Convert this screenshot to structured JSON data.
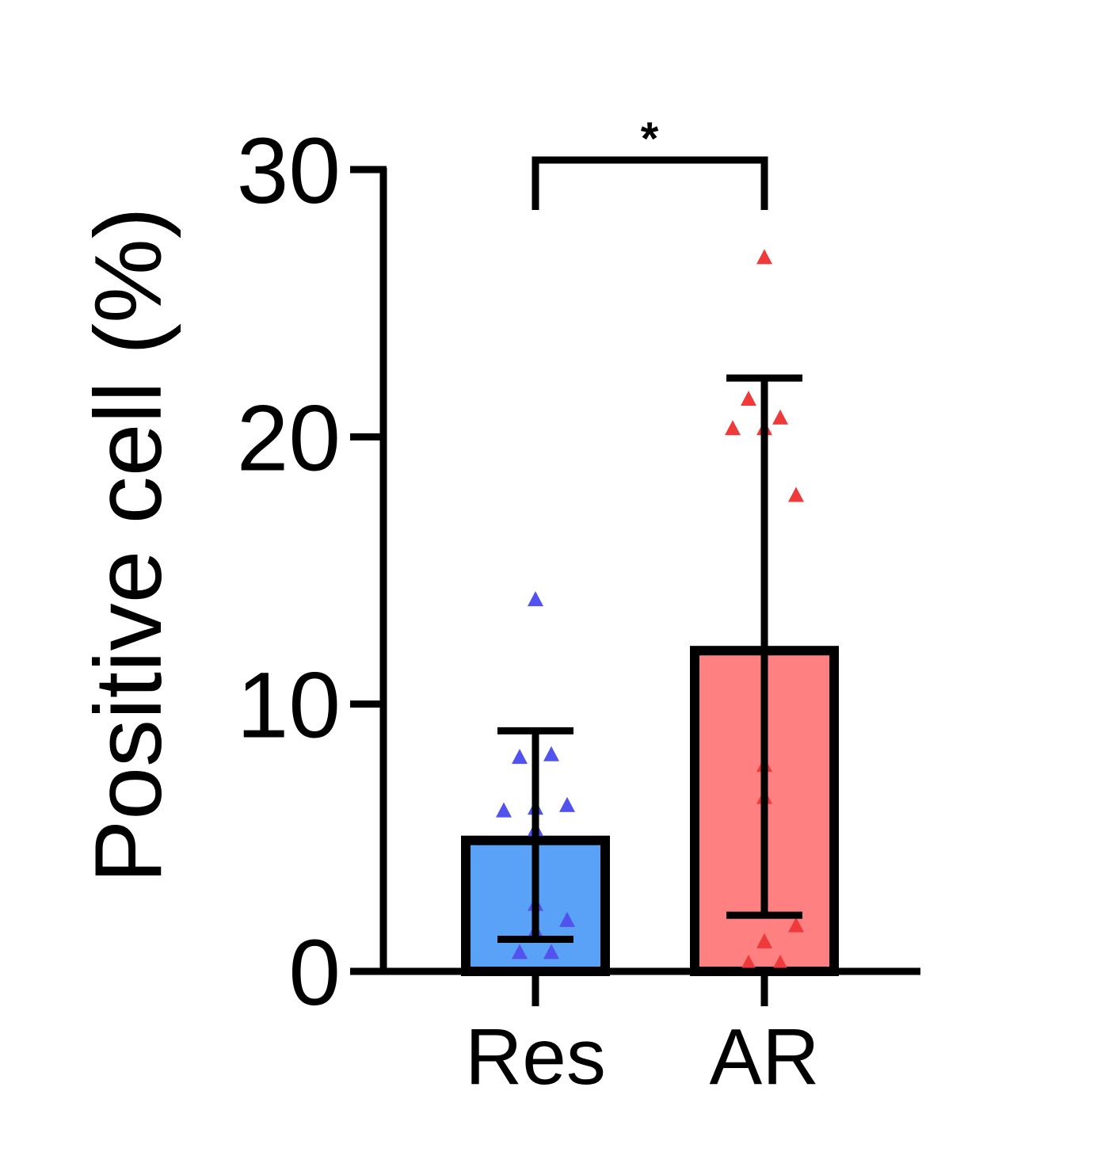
{
  "chart_data": {
    "type": "bar",
    "categories": [
      "Res",
      "AR"
    ],
    "ylabel": "Positive cell (%)",
    "xlabel": "",
    "ylim": [
      0,
      30
    ],
    "yticks": [
      0,
      10,
      20,
      30
    ],
    "grid": false,
    "legend": "none",
    "series": [
      {
        "values": [
          4.9,
          12.0
        ],
        "error_low": [
          1.2,
          2.1
        ],
        "error_high": [
          9.0,
          22.2
        ],
        "colors": [
          "#5aa2f8",
          "#fe8080"
        ],
        "point_colors": [
          "#5252ee",
          "#ee3a3a"
        ]
      }
    ],
    "points": [
      [
        13.9,
        8.0,
        8.1,
        6.0,
        6.1,
        6.2,
        5.3,
        2.5,
        1.9,
        1.5,
        0.7,
        0.7
      ],
      [
        26.7,
        21.4,
        20.7,
        20.3,
        20.3,
        17.8,
        7.7,
        6.5,
        1.7,
        1.1,
        0.3,
        0.3
      ]
    ],
    "significance": [
      {
        "between": [
          "Res",
          "AR"
        ],
        "label": "*"
      }
    ]
  }
}
